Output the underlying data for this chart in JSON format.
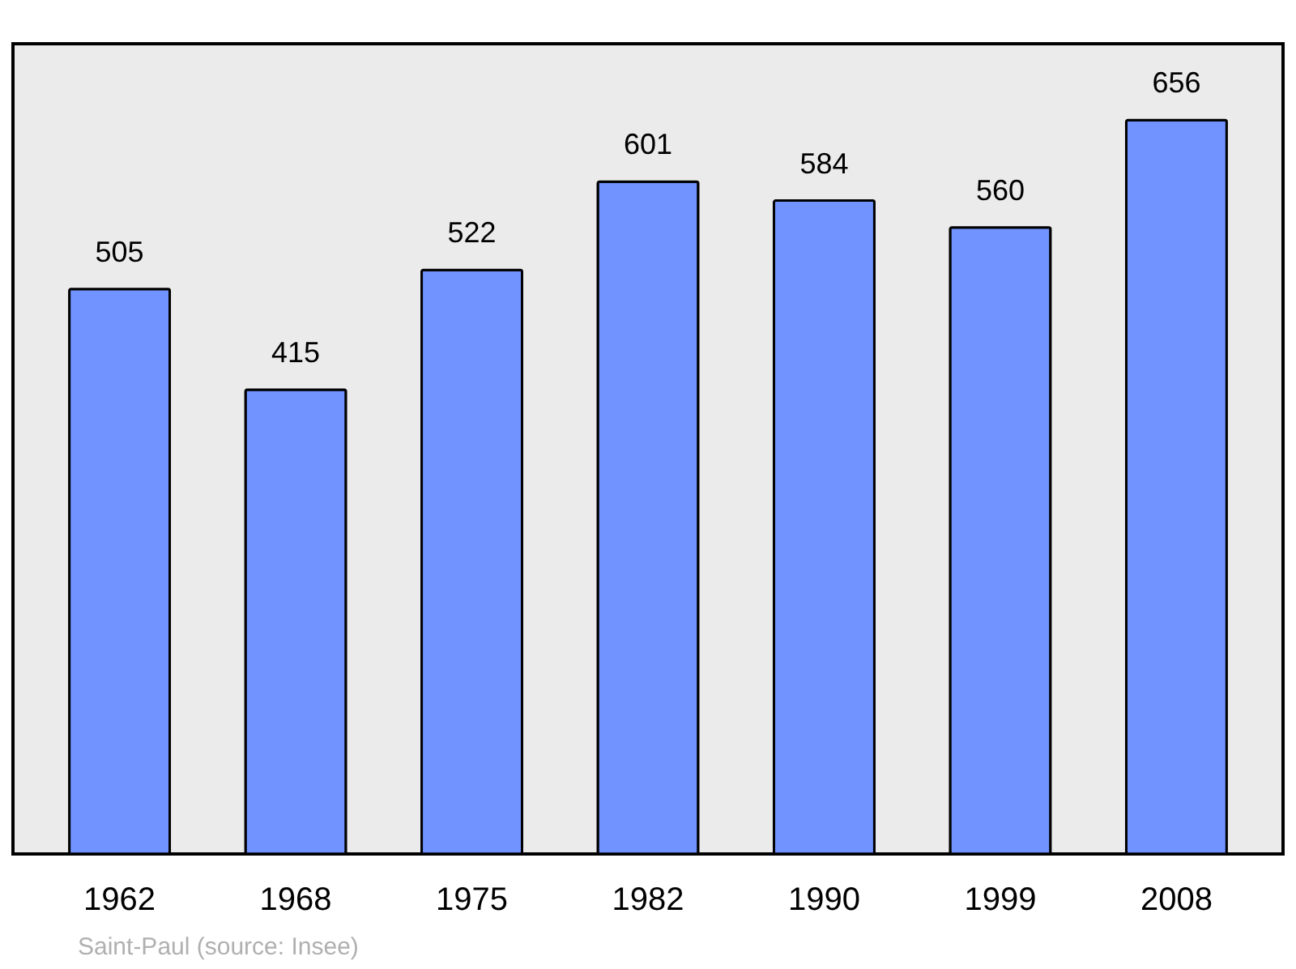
{
  "chart_data": {
    "type": "bar",
    "categories": [
      "1962",
      "1968",
      "1975",
      "1982",
      "1990",
      "1999",
      "2008"
    ],
    "values": [
      505,
      415,
      522,
      601,
      584,
      560,
      656
    ],
    "color": "#7093ff",
    "data_labels": true,
    "grid": false,
    "tick_labels": "x",
    "annotations": [
      "Saint-Paul    (source: Insee)"
    ]
  }
}
